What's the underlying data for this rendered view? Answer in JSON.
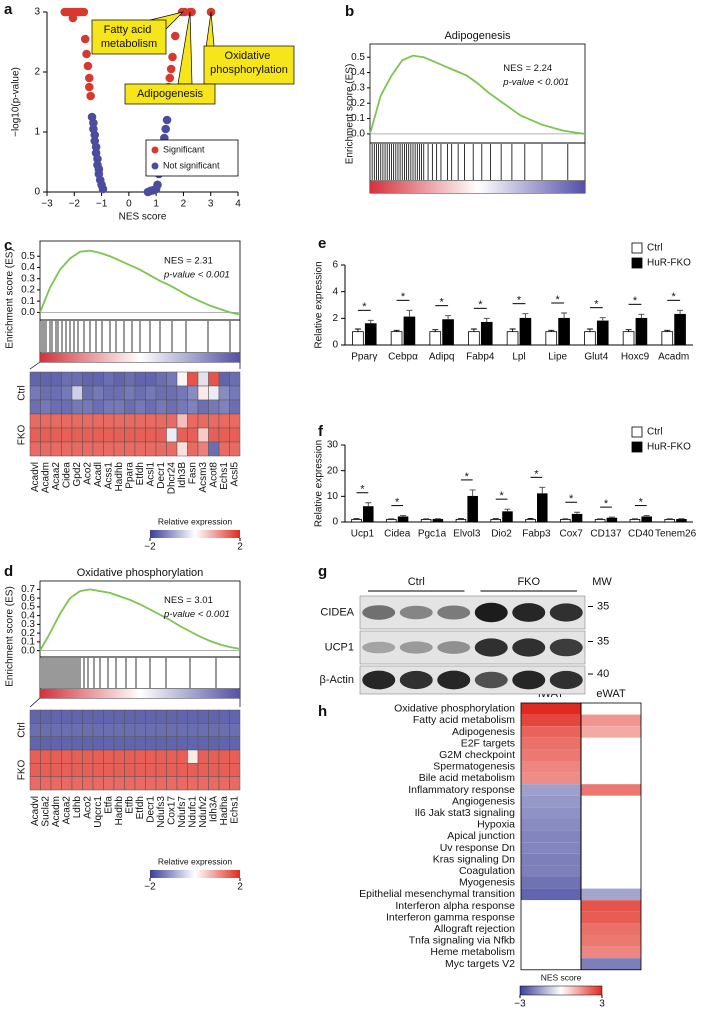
{
  "chart_data": [
    {
      "panel": "a",
      "type": "scatter",
      "xlabel": "NES score",
      "ylabel": "−log10(p-value)",
      "xlim": [
        -3,
        4
      ],
      "xticks": [
        {
          "value": -3,
          "label": "−3"
        },
        {
          "value": -2,
          "label": "−2"
        },
        {
          "value": -1,
          "label": "−1"
        },
        0,
        1,
        2,
        3,
        4
      ],
      "ylim": [
        0,
        3
      ],
      "yticks": [
        0,
        1,
        2,
        3
      ],
      "series": [
        {
          "name": "Significant",
          "color": "#d63a2f",
          "x": [
            -2.35,
            -2.25,
            -2.15,
            -2.05,
            -1.95,
            -1.85,
            -1.75,
            -1.65,
            -2.05,
            -1.6,
            -1.55,
            -1.5,
            -1.45,
            -1.45,
            -1.4,
            1.45,
            1.5,
            1.55,
            1.6,
            1.7,
            1.95,
            2.05,
            2.24,
            2.3,
            3.01
          ],
          "values": [
            3,
            3,
            3,
            3,
            3,
            3,
            3,
            3,
            2.9,
            2.55,
            2.3,
            2.1,
            1.9,
            1.75,
            1.6,
            1.75,
            1.9,
            2.05,
            2.25,
            2.6,
            3,
            3,
            3,
            3,
            3
          ]
        },
        {
          "name": "Not significant",
          "color": "#4a4c9e",
          "x": [
            -1.35,
            -1.3,
            -1.3,
            -1.25,
            -1.25,
            -1.2,
            -1.2,
            -1.15,
            -1.15,
            -1.1,
            -1.1,
            -1.05,
            -1.0,
            -0.95,
            0.7,
            0.8,
            0.9,
            1.0,
            1.05,
            1.1,
            1.15,
            1.2,
            1.25,
            1.3,
            1.35,
            1.4
          ],
          "values": [
            1.25,
            1.15,
            1.05,
            0.95,
            0.85,
            0.75,
            0.65,
            0.55,
            0.45,
            0.38,
            0.3,
            0.2,
            0.12,
            0.05,
            0,
            0.02,
            0.03,
            0.05,
            0.12,
            0.3,
            0.45,
            0.6,
            0.75,
            0.9,
            1.05,
            1.2
          ]
        }
      ],
      "annotations": [
        "Fatty acid metabolism",
        "Oxidative phosphorylation",
        "Adipogenesis"
      ]
    },
    {
      "panel": "b",
      "type": "gsea",
      "title": "Adipogenesis",
      "ylabel": "Enrichment score (ES)",
      "nes_text": "NES = 2.24",
      "p_text": "p-value < 0.001",
      "xlim": [
        0,
        100
      ],
      "x": [
        0,
        5,
        10,
        15,
        20,
        25,
        30,
        35,
        40,
        45,
        50,
        55,
        60,
        65,
        70,
        75,
        80,
        85,
        90,
        95,
        100
      ],
      "values": [
        0,
        0.25,
        0.38,
        0.48,
        0.51,
        0.5,
        0.47,
        0.44,
        0.41,
        0.38,
        0.33,
        0.27,
        0.22,
        0.17,
        0.12,
        0.09,
        0.06,
        0.04,
        0.02,
        0.01,
        0
      ],
      "ylim": [
        -0.04,
        0.56
      ],
      "yticks": [
        {
          "value": 0,
          "label": "0.0"
        },
        0.1,
        0.2,
        0.3,
        0.4,
        0.5
      ],
      "hits": [
        1,
        2,
        3,
        4,
        5,
        6,
        7,
        8,
        9,
        10,
        11,
        12,
        13,
        14,
        15,
        16,
        17,
        18,
        19,
        20,
        21,
        22,
        23,
        24,
        25,
        27,
        29,
        31,
        33,
        36,
        38,
        41,
        44,
        48,
        52,
        56,
        61,
        66,
        72,
        80,
        92
      ],
      "color": "#7cc551",
      "rank_colors": [
        "#d6303a",
        "#ffffff",
        "#5550a8"
      ]
    },
    {
      "panel": "c",
      "type": "gsea",
      "ylabel": "Enrichment score (ES)",
      "nes_text": "NES = 2.31",
      "p_text": "p-value < 0.001",
      "xlim": [
        0,
        100
      ],
      "x": [
        0,
        5,
        10,
        15,
        20,
        25,
        30,
        35,
        40,
        45,
        50,
        55,
        60,
        65,
        70,
        75,
        80,
        85,
        90,
        95,
        100
      ],
      "values": [
        0,
        0.22,
        0.38,
        0.48,
        0.54,
        0.55,
        0.53,
        0.5,
        0.46,
        0.42,
        0.38,
        0.33,
        0.28,
        0.24,
        0.19,
        0.14,
        0.1,
        0.06,
        0.03,
        0,
        -0.02
      ],
      "ylim": [
        -0.05,
        0.6
      ],
      "yticks": [
        {
          "value": 0,
          "label": "0.0"
        },
        0.1,
        0.2,
        0.3,
        0.4,
        0.5
      ],
      "hits": [
        1,
        2,
        3,
        5,
        6,
        8,
        9,
        11,
        13,
        15,
        17,
        19,
        22,
        25,
        28,
        31,
        35,
        38,
        42,
        46,
        50,
        55,
        60,
        66,
        73,
        84,
        95
      ],
      "color": "#7cc551",
      "rank_colors": [
        "#d6303a",
        "#ffffff",
        "#5550a8"
      ],
      "heatmap": {
        "row_groups": [
          "Ctrl",
          "FKO"
        ],
        "genes": [
          "Acadvl",
          "Acadm",
          "Acaa2",
          "Cidea",
          "Gpd2",
          "Aco2",
          "Acadl",
          "Acss1",
          "Hadhb",
          "Ppara",
          "Etfdh",
          "Acsl1",
          "Decr1",
          "Dhcr24",
          "Idh3B",
          "Fasn",
          "Acsm3",
          "Acot8",
          "Echs1",
          "Acsl5"
        ],
        "rows": [
          [
            -1.6,
            -1.6,
            -1.6,
            -1.5,
            -1.5,
            -1.6,
            -1.6,
            -1.5,
            -1.6,
            -1.5,
            -1.6,
            -1.6,
            -1.5,
            -1.4,
            0.1,
            1.6,
            -0.3,
            1.6,
            -1.6,
            -1.5
          ],
          [
            -1.4,
            -1.5,
            -1.5,
            -1.4,
            -0.5,
            -1.5,
            -1.4,
            -1.5,
            -1.5,
            -1.4,
            -1.5,
            -1.4,
            -1.5,
            -1.5,
            -1.4,
            -1.2,
            0.2,
            -0.2,
            -1.2,
            -1.4
          ],
          [
            -1.5,
            -1.4,
            -1.5,
            -1.5,
            -1.4,
            -1.4,
            -1.5,
            -1.4,
            -1.4,
            -1.5,
            -1.4,
            -1.5,
            -1.4,
            -1.5,
            -1.4,
            -1.3,
            -1.5,
            -1.4,
            -1.3,
            -1.5
          ],
          [
            1.4,
            1.4,
            1.4,
            1.4,
            1.4,
            1.4,
            1.4,
            1.4,
            1.4,
            1.4,
            1.4,
            1.4,
            1.4,
            1.4,
            0.6,
            1.4,
            1.4,
            1.4,
            1.4,
            1.4
          ],
          [
            1.5,
            1.5,
            1.5,
            1.5,
            1.5,
            1.5,
            1.5,
            1.5,
            1.5,
            1.5,
            1.5,
            1.5,
            1.5,
            -0.2,
            1.5,
            1.5,
            0.5,
            1.5,
            1.5,
            1.5
          ],
          [
            1.4,
            1.4,
            1.4,
            1.4,
            1.4,
            1.4,
            1.4,
            1.4,
            1.4,
            1.4,
            1.4,
            1.4,
            1.4,
            1.4,
            0.3,
            1.4,
            1.2,
            -1.5,
            1.4,
            1.4
          ]
        ],
        "colorbar_label": "Relative expression",
        "clim": [
          -2,
          2
        ],
        "cticks": [
          {
            "value": -2,
            "label": "−2"
          },
          2
        ],
        "cmap": [
          "#3a3f98",
          "#ffffff",
          "#e02a1f"
        ]
      }
    },
    {
      "panel": "d",
      "type": "gsea",
      "title": "Oxidative phosphorylation",
      "ylabel": "Enrichment score (ES)",
      "nes_text": "NES = 3.01",
      "p_text": "p-value < 0.001",
      "xlim": [
        0,
        100
      ],
      "x": [
        0,
        5,
        10,
        15,
        20,
        25,
        30,
        35,
        40,
        45,
        50,
        55,
        60,
        65,
        70,
        75,
        80,
        85,
        90,
        95,
        100
      ],
      "values": [
        0,
        0.2,
        0.42,
        0.6,
        0.68,
        0.7,
        0.68,
        0.66,
        0.62,
        0.58,
        0.53,
        0.47,
        0.41,
        0.35,
        0.28,
        0.22,
        0.16,
        0.11,
        0.07,
        0.04,
        0.02
      ],
      "ylim": [
        -0.05,
        0.75
      ],
      "yticks": [
        {
          "value": 0,
          "label": "0.0"
        },
        0.1,
        0.2,
        0.3,
        0.4,
        0.5,
        0.6,
        0.7
      ],
      "hits": [
        1,
        2,
        3,
        4,
        5,
        6,
        7,
        8,
        9,
        10,
        11,
        12,
        13,
        14,
        15,
        16,
        17,
        18,
        19,
        20,
        22,
        24,
        27,
        30,
        34,
        38,
        43,
        48,
        55,
        63,
        75,
        88
      ],
      "color": "#7cc551",
      "rank_colors": [
        "#d6303a",
        "#ffffff",
        "#5550a8"
      ],
      "heatmap": {
        "row_groups": [
          "Ctrl",
          "FKO"
        ],
        "genes": [
          "Acadvl",
          "Sucla2",
          "Acadm",
          "Acaa2",
          "Ldhb",
          "Aco2",
          "Uqcrc1",
          "Etfa",
          "Hadhb",
          "Etfb",
          "Etfdh",
          "Decr1",
          "Ndufs3",
          "Cox17",
          "Ndufs7",
          "Ndufc1",
          "Ndufv2",
          "Idh3A",
          "Hadha",
          "Echs1"
        ],
        "rows": [
          [
            -1.6,
            -1.6,
            -1.6,
            -1.6,
            -1.6,
            -1.6,
            -1.6,
            -1.6,
            -1.6,
            -1.6,
            -1.6,
            -1.6,
            -1.6,
            -1.6,
            -1.6,
            -1.6,
            -1.6,
            -1.6,
            -1.6,
            -1.6
          ],
          [
            -1.5,
            -1.5,
            -1.5,
            -1.5,
            -1.5,
            -1.5,
            -1.5,
            -1.5,
            -1.5,
            -1.5,
            -1.5,
            -1.5,
            -1.5,
            -1.5,
            -1.5,
            -1.5,
            -1.5,
            -1.5,
            -1.5,
            -1.5
          ],
          [
            -1.6,
            -1.6,
            -1.6,
            -1.6,
            -1.6,
            -1.6,
            -1.6,
            -1.6,
            -1.6,
            -1.6,
            -1.6,
            -1.6,
            -1.6,
            -1.6,
            -1.6,
            -1.6,
            -1.6,
            -1.6,
            -1.6,
            -1.6
          ],
          [
            1.5,
            1.5,
            1.5,
            1.5,
            1.5,
            1.5,
            1.5,
            1.5,
            1.5,
            1.5,
            1.5,
            1.5,
            1.5,
            1.5,
            1.5,
            0.2,
            1.5,
            1.5,
            1.5,
            1.5
          ],
          [
            1.5,
            1.5,
            1.5,
            1.5,
            1.5,
            1.5,
            1.5,
            1.5,
            1.5,
            1.5,
            1.5,
            1.5,
            1.5,
            1.5,
            1.5,
            1.5,
            1.5,
            1.5,
            1.5,
            1.5
          ],
          [
            1.4,
            1.4,
            1.4,
            1.4,
            1.4,
            1.4,
            1.4,
            1.4,
            1.4,
            1.4,
            1.4,
            1.4,
            1.4,
            1.4,
            1.4,
            1.4,
            1.4,
            1.4,
            1.4,
            1.4
          ]
        ],
        "colorbar_label": "Relative expression",
        "clim": [
          -2,
          2
        ],
        "cticks": [
          {
            "value": -2,
            "label": "−2"
          },
          2
        ],
        "cmap": [
          "#3a3f98",
          "#ffffff",
          "#e02a1f"
        ]
      }
    },
    {
      "panel": "e",
      "type": "bar",
      "ylabel": "Relative expression",
      "categories": [
        "Pparγ",
        "Cebpα",
        "Adipq",
        "Fabp4",
        "Lpl",
        "Lipe",
        "Glut4",
        "Hoxc9",
        "Acadm"
      ],
      "series": [
        {
          "name": "Ctrl",
          "color": "#ffffff",
          "values": [
            1,
            1,
            1,
            1,
            1,
            1,
            1,
            1,
            1
          ],
          "errors": [
            0.2,
            0.1,
            0.15,
            0.2,
            0.2,
            0.1,
            0.2,
            0.15,
            0.1
          ]
        },
        {
          "name": "HuR-FKO",
          "color": "#000000",
          "values": [
            1.6,
            2.1,
            1.9,
            1.7,
            2.0,
            2.0,
            1.8,
            2.0,
            2.3
          ],
          "errors": [
            0.25,
            0.5,
            0.3,
            0.3,
            0.35,
            0.4,
            0.25,
            0.3,
            0.3
          ]
        }
      ],
      "stars": [
        "*",
        "*",
        "*",
        "*",
        "*",
        "*",
        "*",
        "*",
        "*"
      ],
      "ylim": [
        0,
        6
      ],
      "yticks": [
        0,
        2,
        4,
        6
      ]
    },
    {
      "panel": "f",
      "type": "bar",
      "ylabel": "Relative expression",
      "categories": [
        "Ucp1",
        "Cidea",
        "Pgc1a",
        "Elvol3",
        "Dio2",
        "Fabp3",
        "Cox7",
        "CD137",
        "CD40",
        "Tenem26"
      ],
      "series": [
        {
          "name": "Ctrl",
          "color": "#ffffff",
          "values": [
            1,
            1,
            1,
            1,
            1,
            1,
            1,
            1,
            1,
            1
          ],
          "errors": [
            0.3,
            0.2,
            0.2,
            0.3,
            0.3,
            0.4,
            0.2,
            0.2,
            0.2,
            0.2
          ]
        },
        {
          "name": "HuR-FKO",
          "color": "#000000",
          "values": [
            6,
            2,
            1,
            10,
            4,
            11,
            3,
            1.5,
            2,
            1
          ],
          "errors": [
            1.5,
            0.5,
            0.3,
            2.5,
            1,
            2.5,
            0.8,
            0.4,
            0.5,
            0.3
          ]
        }
      ],
      "stars": [
        "*",
        "*",
        null,
        "*",
        "*",
        "*",
        "*",
        "*",
        "*",
        null
      ],
      "ylim": [
        0,
        30
      ],
      "yticks": [
        0,
        10,
        20,
        30
      ]
    },
    {
      "panel": "h",
      "type": "heatmap",
      "columns": [
        "iWAT",
        "eWAT"
      ],
      "rows": [
        "Oxidative phosphorylation",
        "Fatty acid metabolism",
        "Adipogenesis",
        "E2F targets",
        "G2M checkpoint",
        "Spermatogenesis",
        "Bile acid metabolism",
        "Inflammatory response",
        "Angiogenesis",
        "Il6 Jak stat3 signaling",
        "Hypoxia",
        "Apical junction",
        "Uv response Dn",
        "Kras signaling Dn",
        "Coagulation",
        "Myogenesis",
        "Epithelial mesenchymal transition",
        "Interferon alpha response",
        "Interferon gamma response",
        "Allograft rejection",
        "Tnfa signaling via Nfkb",
        "Heme metabolism",
        "Myc targets V2"
      ],
      "values": [
        [
          3.0,
          0
        ],
        [
          2.6,
          1.5
        ],
        [
          2.2,
          1.2
        ],
        [
          2.0,
          0
        ],
        [
          1.9,
          0
        ],
        [
          1.7,
          0
        ],
        [
          1.6,
          0
        ],
        [
          -1.5,
          1.9
        ],
        [
          -1.6,
          0
        ],
        [
          -1.7,
          0
        ],
        [
          -1.8,
          0
        ],
        [
          -1.9,
          0
        ],
        [
          -1.9,
          0
        ],
        [
          -2.0,
          0
        ],
        [
          -2.0,
          0
        ],
        [
          -2.2,
          0
        ],
        [
          -2.4,
          -1.4
        ],
        [
          0,
          2.4
        ],
        [
          0,
          2.3
        ],
        [
          0,
          2.0
        ],
        [
          0,
          1.9
        ],
        [
          0,
          1.7
        ],
        [
          0,
          -2.0
        ]
      ],
      "clim": [
        -3,
        3
      ],
      "cticks": [
        {
          "value": -3,
          "label": "−3"
        },
        3
      ],
      "colorbar_label": "NES score",
      "cmap": [
        "#3a3f98",
        "#ffffff",
        "#e02a1f"
      ]
    }
  ],
  "blot": {
    "panel": "g",
    "groups": [
      "Ctrl",
      "FKO"
    ],
    "mw_label": "MW",
    "rows": [
      {
        "name": "CIDEA",
        "mw": "35",
        "intensity": [
          0.55,
          0.45,
          0.5,
          0.95,
          0.9,
          0.85
        ]
      },
      {
        "name": "UCP1",
        "mw": "35",
        "intensity": [
          0.3,
          0.35,
          0.4,
          0.85,
          0.85,
          0.8
        ]
      },
      {
        "name": "β-Actin",
        "mw": "40",
        "intensity": [
          0.9,
          0.85,
          0.9,
          0.7,
          0.9,
          0.85
        ]
      }
    ]
  }
}
